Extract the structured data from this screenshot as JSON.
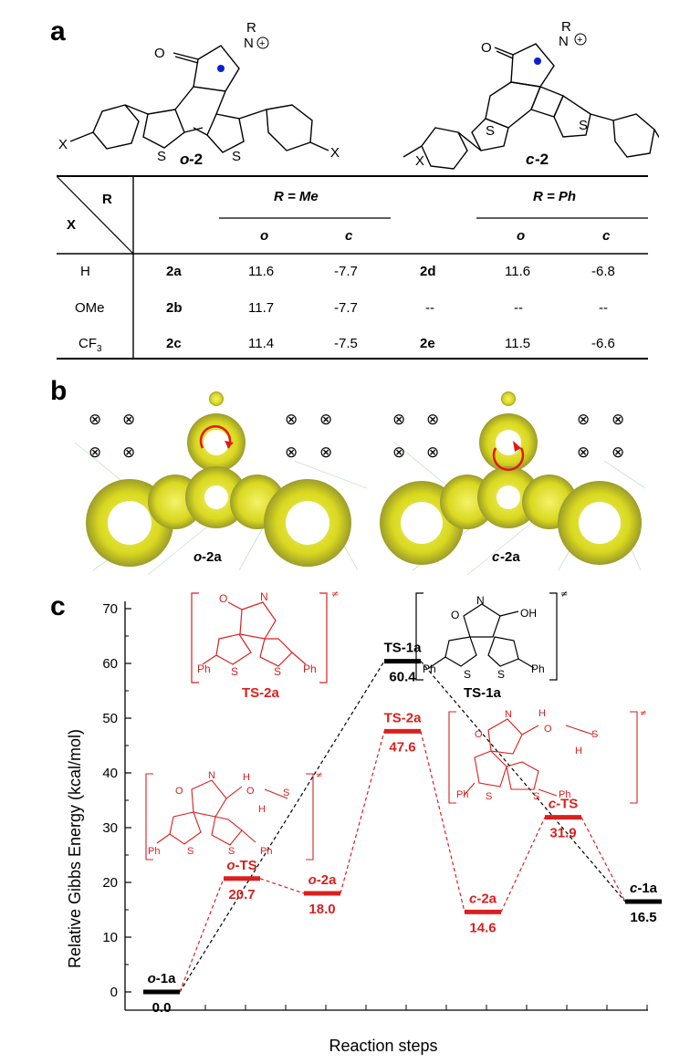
{
  "panel_a": {
    "letter": "a",
    "molecule_open": {
      "label_prefix": "o",
      "label_suffix": "-2",
      "sub_x": "X",
      "sub_r": "R",
      "atom_n": "N",
      "atom_s": "S",
      "atom_o": "O"
    },
    "molecule_closed": {
      "label_prefix": "c",
      "label_suffix": "-2",
      "sub_x": "X",
      "sub_r": "R",
      "atom_n": "N",
      "atom_s": "S",
      "atom_o": "O"
    },
    "table": {
      "corner_r": "R",
      "corner_x": "X",
      "group_me": "R = Me",
      "group_ph": "R = Ph",
      "sub_o": "o",
      "sub_c": "c",
      "rows": [
        {
          "x": "H",
          "sub": "",
          "cmp1": "2a",
          "me_o": "11.6",
          "me_c": "-7.7",
          "cmp2": "2d",
          "ph_o": "11.6",
          "ph_c": "-6.8"
        },
        {
          "x": "OMe",
          "sub": "",
          "cmp1": "2b",
          "me_o": "11.7",
          "me_c": "-7.7",
          "cmp2": "--",
          "ph_o": "--",
          "ph_c": "--"
        },
        {
          "x": "CF",
          "sub": "3",
          "cmp1": "2c",
          "me_o": "11.4",
          "me_c": "-7.5",
          "cmp2": "2e",
          "ph_o": "11.5",
          "ph_c": "-6.6"
        }
      ]
    }
  },
  "panel_b": {
    "letter": "b",
    "left_label_prefix": "o",
    "left_label_suffix": "-2a",
    "right_label_prefix": "c",
    "right_label_suffix": "-2a",
    "field_symbol": "⊗"
  },
  "panel_c": {
    "letter": "c",
    "ts_bracket_labels": {
      "ts2a": "TS-2a",
      "ts1a": "TS-1a",
      "ph": "Ph",
      "s": "S",
      "oh": "OH",
      "n": "N",
      "o": "O",
      "h": "H",
      "double_dagger": "≠"
    }
  },
  "chart_data": {
    "type": "line",
    "ylabel": "Relative Gibbs Energy (kcal/mol)",
    "xlabel": "Reaction steps",
    "ylim": [
      0,
      70
    ],
    "yticks": [
      0,
      10,
      20,
      30,
      40,
      50,
      60,
      70
    ],
    "colors": {
      "black_path": "#000000",
      "red_path": "#d9201f"
    },
    "levels": [
      {
        "id": "o-1a",
        "name_prefix": "o",
        "name_suffix": "-1a",
        "energy": 0.0,
        "value_label": "0.0",
        "step": 1,
        "color": "black"
      },
      {
        "id": "o-TS",
        "name_prefix": "o",
        "name_suffix": "-TS",
        "energy": 20.7,
        "value_label": "20.7",
        "step": 2,
        "color": "red"
      },
      {
        "id": "o-2a",
        "name_prefix": "o",
        "name_suffix": "-2a",
        "energy": 18.0,
        "value_label": "18.0",
        "step": 3,
        "color": "red"
      },
      {
        "id": "TS-1a",
        "name_prefix": "",
        "name_suffix": "TS-1a",
        "energy": 60.4,
        "value_label": "60.4",
        "step": 4,
        "color": "black"
      },
      {
        "id": "TS-2a",
        "name_prefix": "",
        "name_suffix": "TS-2a",
        "energy": 47.6,
        "value_label": "47.6",
        "step": 4,
        "color": "red"
      },
      {
        "id": "c-2a",
        "name_prefix": "c",
        "name_suffix": "-2a",
        "energy": 14.6,
        "value_label": "14.6",
        "step": 5,
        "color": "red"
      },
      {
        "id": "c-TS",
        "name_prefix": "c",
        "name_suffix": "-TS",
        "energy": 31.9,
        "value_label": "31.9",
        "step": 6,
        "color": "red"
      },
      {
        "id": "c-1a",
        "name_prefix": "c",
        "name_suffix": "-1a",
        "energy": 16.5,
        "value_label": "16.5",
        "step": 7,
        "color": "black"
      }
    ],
    "black_path": [
      "o-1a",
      "TS-1a",
      "c-1a"
    ],
    "red_path": [
      "o-1a",
      "o-TS",
      "o-2a",
      "TS-2a",
      "c-2a",
      "c-TS",
      "c-1a"
    ]
  }
}
